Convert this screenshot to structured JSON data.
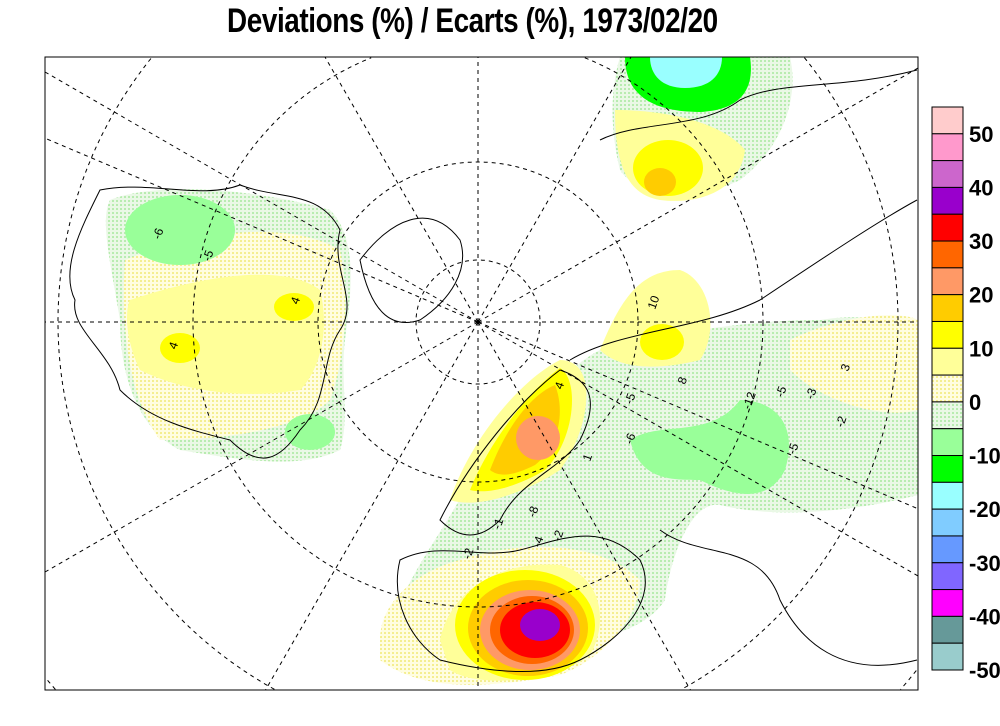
{
  "title": "Deviations (%) / Ecarts (%), 1973/02/20",
  "legend": {
    "labels": [
      "50",
      "40",
      "30",
      "20",
      "10",
      "0",
      "-10",
      "-20",
      "-30",
      "-40",
      "-50"
    ],
    "colors": [
      "#ffcccc",
      "#ff99cc",
      "#cc66cc",
      "#9900cc",
      "#ff0000",
      "#ff6600",
      "#ff9966",
      "#ffcc00",
      "#ffff00",
      "#ffff99",
      "dotted-yellow",
      "dotted-green",
      "#99ff99",
      "#00ff00",
      "#99ffff",
      "#80ccff",
      "#6699ff",
      "#8066ff",
      "#ff00ff",
      "#669999",
      "#99cccc"
    ]
  },
  "stations": [
    "-6",
    "-5",
    "4",
    "4",
    "10",
    "8",
    "4",
    "-5",
    "-6",
    "1",
    "-1",
    "-8",
    "-4",
    "-2",
    "-2",
    "-12",
    "-5",
    "-5",
    "-3",
    "-2",
    "3"
  ]
}
